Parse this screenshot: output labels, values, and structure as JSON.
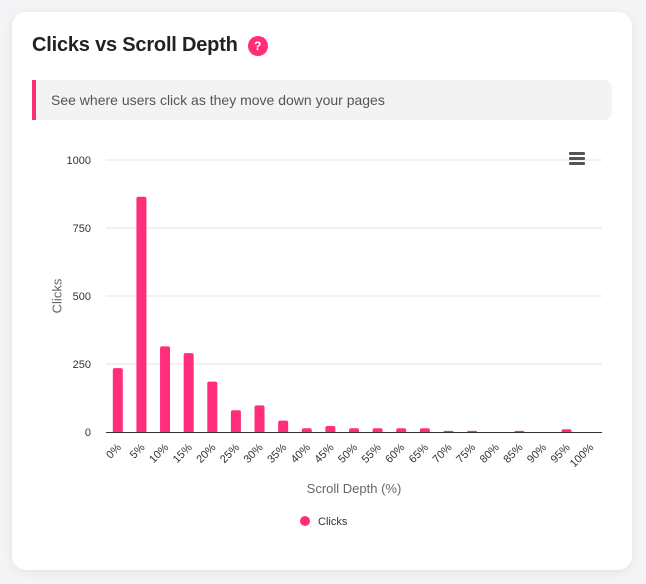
{
  "card": {
    "title": "Clicks vs Scroll Depth",
    "help_label": "?",
    "description": "See where users click as they move down your pages"
  },
  "colors": {
    "accent": "#ff2d7a",
    "series": "#ff2d7a",
    "grid": "#e6e6e6"
  },
  "icons": {
    "menu": "hamburger-menu-icon",
    "help": "question-icon"
  },
  "chart_data": {
    "type": "bar",
    "title": "",
    "xlabel": "Scroll Depth (%)",
    "ylabel": "Clicks",
    "ylim": [
      0,
      1000
    ],
    "yticks": [
      "0",
      "250",
      "500",
      "750",
      "1000"
    ],
    "grid": true,
    "legend": "bottom-center",
    "categories": [
      "0%",
      "5%",
      "10%",
      "15%",
      "20%",
      "25%",
      "30%",
      "35%",
      "40%",
      "45%",
      "50%",
      "55%",
      "60%",
      "65%",
      "70%",
      "75%",
      "80%",
      "85%",
      "90%",
      "95%",
      "100%"
    ],
    "series": [
      {
        "name": "Clicks",
        "values": [
          235,
          865,
          315,
          290,
          185,
          80,
          98,
          42,
          14,
          22,
          14,
          14,
          14,
          14,
          4,
          4,
          0,
          4,
          0,
          10,
          0
        ]
      }
    ]
  }
}
